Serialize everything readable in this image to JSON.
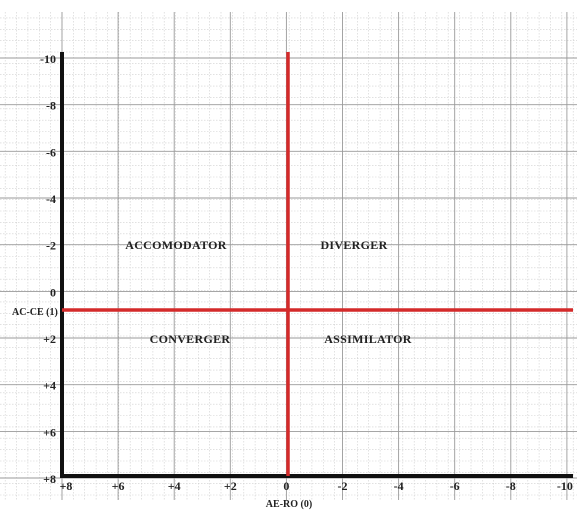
{
  "diagram": {
    "quadrants": {
      "top_left": "ACCOMODATOR",
      "top_right": "DIVERGER",
      "bottom_left": "CONVERGER",
      "bottom_right": "ASSIMILATOR"
    },
    "y_axis_label": "AC-CE (1)",
    "x_axis_label": "AE-RO (0)",
    "y_ticks": [
      "-10",
      "-8",
      "-6",
      "-4",
      "-2",
      "0",
      "+2",
      "+4",
      "+6",
      "+8"
    ],
    "x_ticks": [
      "+8",
      "+6",
      "+4",
      "+2",
      "0",
      "-2",
      "-4",
      "-6",
      "-8",
      "-10"
    ],
    "colors": {
      "cross_lines": "#d42a2a",
      "major_grid": "#9a9a9a",
      "minor_grid": "#cfcfcf",
      "axes": "#111111"
    }
  }
}
